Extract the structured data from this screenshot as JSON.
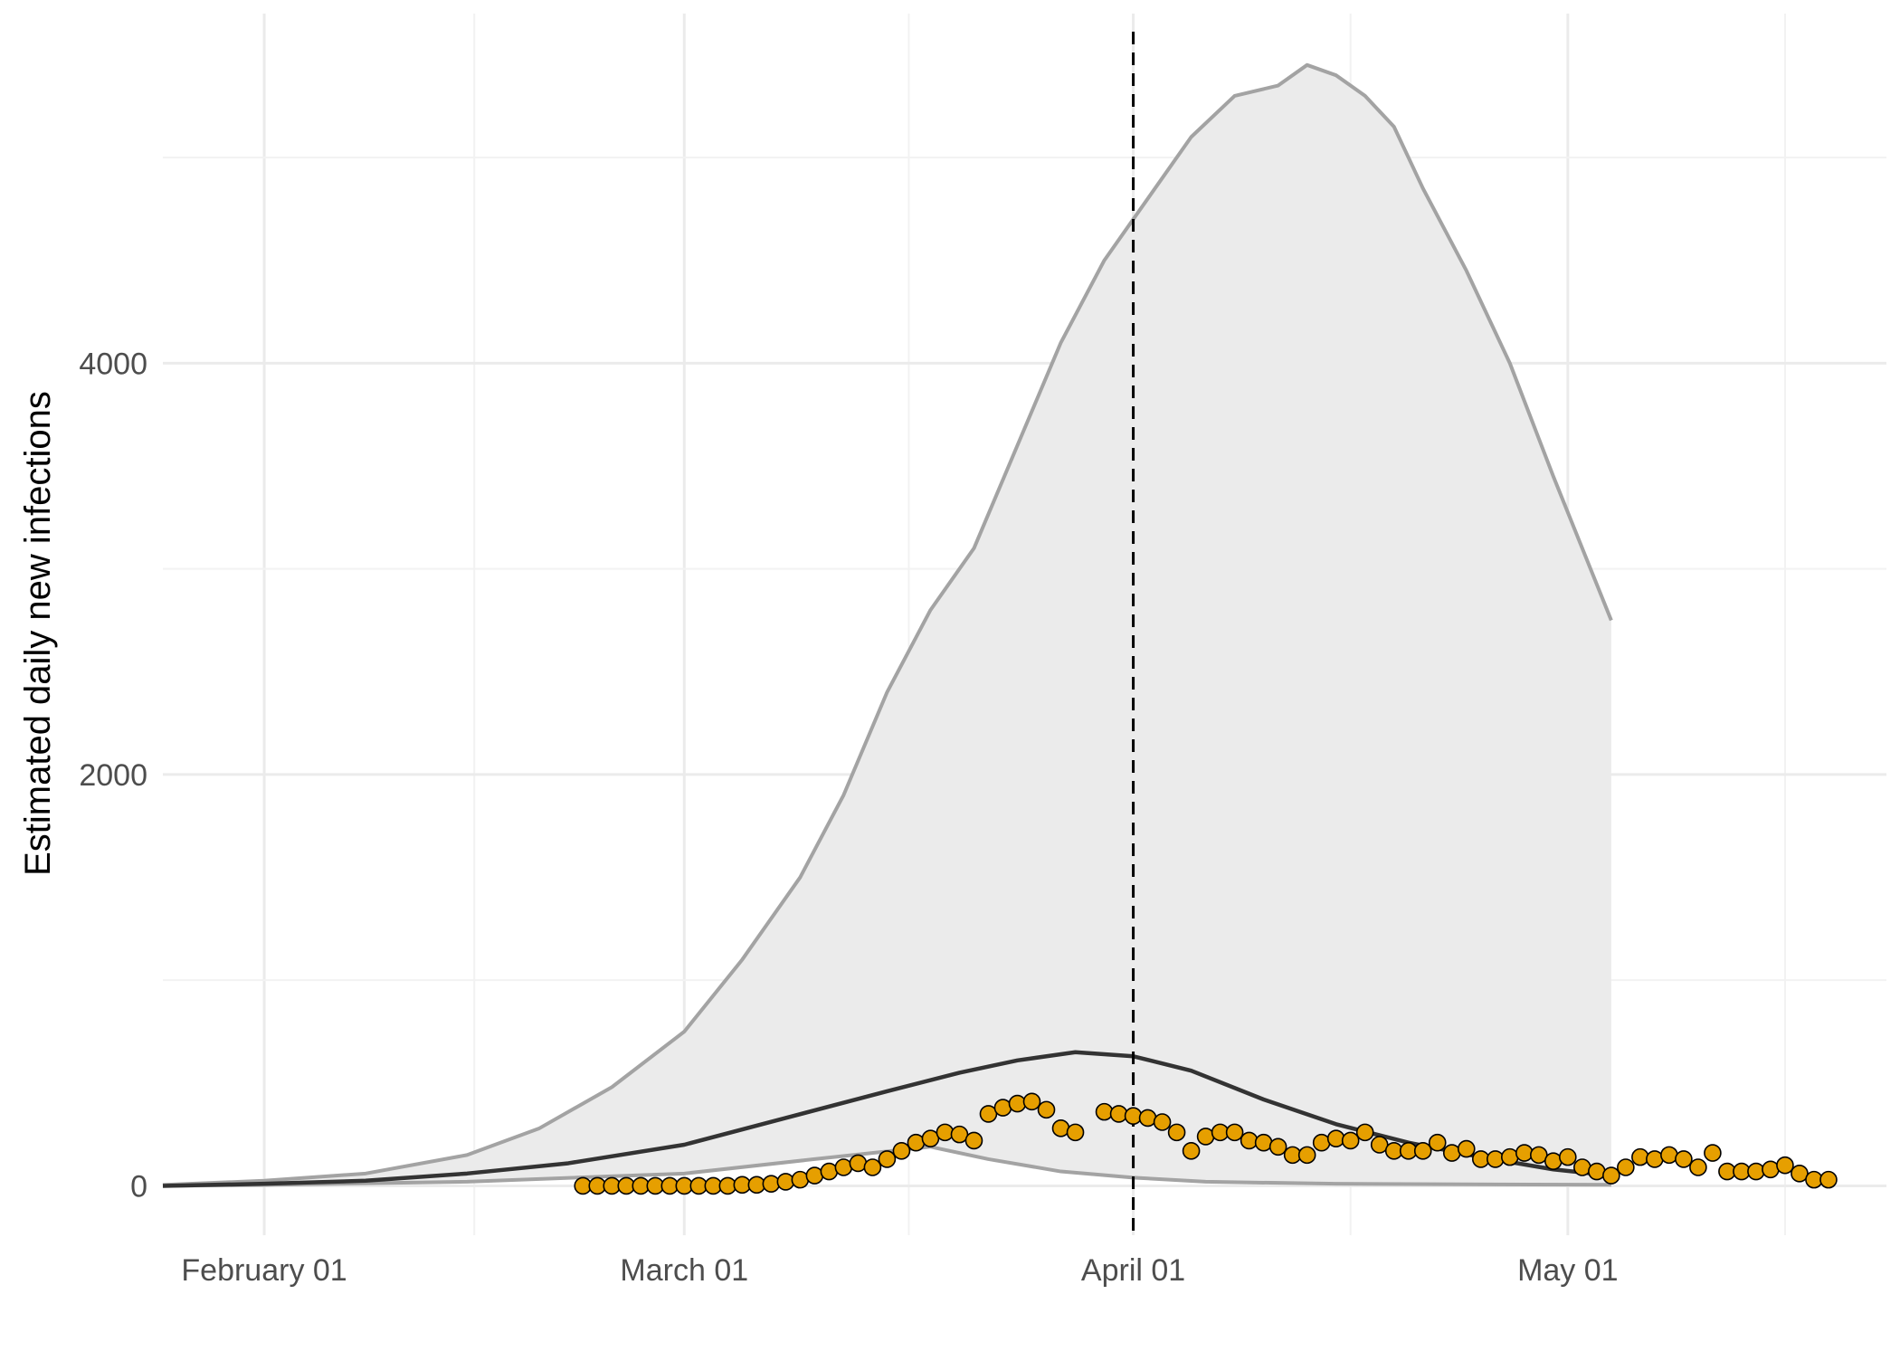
{
  "chart_data": {
    "type": "line",
    "title": "",
    "xlabel": "",
    "ylabel": "Estimated daily new infections",
    "x_ticks": [
      "February 01",
      "March 01",
      "April 01",
      "May 01"
    ],
    "y_ticks": [
      0,
      2000,
      4000
    ],
    "xlim": [
      "2020-01-25",
      "2020-05-23"
    ],
    "ylim": [
      -240,
      5700
    ],
    "grid": true,
    "legend": "none",
    "vline": {
      "date": "2020-04-01",
      "style": "dashed"
    },
    "series": [
      {
        "kind": "band",
        "fill": "#ebebeb",
        "edge_color": "#a3a3a3",
        "upper": [
          [
            "2020-01-25",
            5
          ],
          [
            "2020-02-01",
            25
          ],
          [
            "2020-02-08",
            60
          ],
          [
            "2020-02-15",
            150
          ],
          [
            "2020-02-20",
            280
          ],
          [
            "2020-02-25",
            480
          ],
          [
            "2020-03-01",
            750
          ],
          [
            "2020-03-05",
            1100
          ],
          [
            "2020-03-09",
            1500
          ],
          [
            "2020-03-12",
            1900
          ],
          [
            "2020-03-15",
            2400
          ],
          [
            "2020-03-18",
            2800
          ],
          [
            "2020-03-21",
            3100
          ],
          [
            "2020-03-24",
            3600
          ],
          [
            "2020-03-27",
            4100
          ],
          [
            "2020-03-30",
            4500
          ],
          [
            "2020-04-02",
            4800
          ],
          [
            "2020-04-05",
            5100
          ],
          [
            "2020-04-08",
            5300
          ],
          [
            "2020-04-11",
            5350
          ],
          [
            "2020-04-13",
            5450
          ],
          [
            "2020-04-15",
            5400
          ],
          [
            "2020-04-17",
            5300
          ],
          [
            "2020-04-19",
            5150
          ],
          [
            "2020-04-21",
            4850
          ],
          [
            "2020-04-24",
            4450
          ],
          [
            "2020-04-27",
            4000
          ],
          [
            "2020-04-30",
            3450
          ],
          [
            "2020-05-04",
            2750
          ]
        ],
        "lower": [
          [
            "2020-01-25",
            0
          ],
          [
            "2020-02-01",
            5
          ],
          [
            "2020-02-15",
            20
          ],
          [
            "2020-03-01",
            60
          ],
          [
            "2020-03-10",
            130
          ],
          [
            "2020-03-18",
            190
          ],
          [
            "2020-03-22",
            130
          ],
          [
            "2020-03-27",
            70
          ],
          [
            "2020-04-01",
            40
          ],
          [
            "2020-04-06",
            20
          ],
          [
            "2020-04-15",
            10
          ],
          [
            "2020-05-04",
            5
          ]
        ]
      },
      {
        "kind": "line",
        "color": "#333333",
        "points": [
          [
            "2020-01-25",
            0
          ],
          [
            "2020-02-01",
            10
          ],
          [
            "2020-02-08",
            25
          ],
          [
            "2020-02-15",
            60
          ],
          [
            "2020-02-22",
            110
          ],
          [
            "2020-03-01",
            200
          ],
          [
            "2020-03-08",
            330
          ],
          [
            "2020-03-15",
            460
          ],
          [
            "2020-03-20",
            550
          ],
          [
            "2020-03-24",
            610
          ],
          [
            "2020-03-28",
            650
          ],
          [
            "2020-04-01",
            630
          ],
          [
            "2020-04-05",
            560
          ],
          [
            "2020-04-10",
            420
          ],
          [
            "2020-04-15",
            300
          ],
          [
            "2020-04-20",
            210
          ],
          [
            "2020-04-25",
            140
          ],
          [
            "2020-04-30",
            80
          ],
          [
            "2020-05-04",
            50
          ]
        ]
      },
      {
        "kind": "points",
        "fill": "#e69f00",
        "stroke": "#000000",
        "points": [
          [
            "2020-02-23",
            0
          ],
          [
            "2020-02-24",
            0
          ],
          [
            "2020-02-25",
            0
          ],
          [
            "2020-02-26",
            0
          ],
          [
            "2020-02-27",
            0
          ],
          [
            "2020-02-28",
            0
          ],
          [
            "2020-02-29",
            0
          ],
          [
            "2020-03-01",
            0
          ],
          [
            "2020-03-02",
            0
          ],
          [
            "2020-03-03",
            0
          ],
          [
            "2020-03-04",
            0
          ],
          [
            "2020-03-05",
            5
          ],
          [
            "2020-03-06",
            5
          ],
          [
            "2020-03-07",
            10
          ],
          [
            "2020-03-08",
            20
          ],
          [
            "2020-03-09",
            30
          ],
          [
            "2020-03-10",
            50
          ],
          [
            "2020-03-11",
            70
          ],
          [
            "2020-03-12",
            90
          ],
          [
            "2020-03-13",
            110
          ],
          [
            "2020-03-14",
            90
          ],
          [
            "2020-03-15",
            130
          ],
          [
            "2020-03-16",
            170
          ],
          [
            "2020-03-17",
            210
          ],
          [
            "2020-03-18",
            230
          ],
          [
            "2020-03-19",
            260
          ],
          [
            "2020-03-20",
            250
          ],
          [
            "2020-03-21",
            220
          ],
          [
            "2020-03-22",
            350
          ],
          [
            "2020-03-23",
            380
          ],
          [
            "2020-03-24",
            400
          ],
          [
            "2020-03-25",
            410
          ],
          [
            "2020-03-26",
            370
          ],
          [
            "2020-03-27",
            280
          ],
          [
            "2020-03-28",
            260
          ],
          [
            "2020-03-30",
            360
          ],
          [
            "2020-03-31",
            350
          ],
          [
            "2020-04-01",
            340
          ],
          [
            "2020-04-02",
            330
          ],
          [
            "2020-04-03",
            310
          ],
          [
            "2020-04-04",
            260
          ],
          [
            "2020-04-05",
            170
          ],
          [
            "2020-04-06",
            240
          ],
          [
            "2020-04-07",
            260
          ],
          [
            "2020-04-08",
            260
          ],
          [
            "2020-04-09",
            220
          ],
          [
            "2020-04-10",
            210
          ],
          [
            "2020-04-11",
            190
          ],
          [
            "2020-04-12",
            150
          ],
          [
            "2020-04-13",
            150
          ],
          [
            "2020-04-14",
            210
          ],
          [
            "2020-04-15",
            230
          ],
          [
            "2020-04-16",
            220
          ],
          [
            "2020-04-17",
            260
          ],
          [
            "2020-04-18",
            200
          ],
          [
            "2020-04-19",
            170
          ],
          [
            "2020-04-20",
            170
          ],
          [
            "2020-04-21",
            170
          ],
          [
            "2020-04-22",
            210
          ],
          [
            "2020-04-23",
            160
          ],
          [
            "2020-04-24",
            180
          ],
          [
            "2020-04-25",
            130
          ],
          [
            "2020-04-26",
            130
          ],
          [
            "2020-04-27",
            140
          ],
          [
            "2020-04-28",
            160
          ],
          [
            "2020-04-29",
            150
          ],
          [
            "2020-04-30",
            120
          ],
          [
            "2020-05-01",
            140
          ],
          [
            "2020-05-02",
            90
          ],
          [
            "2020-05-03",
            70
          ],
          [
            "2020-05-04",
            50
          ],
          [
            "2020-05-05",
            90
          ],
          [
            "2020-05-06",
            140
          ],
          [
            "2020-05-07",
            130
          ],
          [
            "2020-05-08",
            150
          ],
          [
            "2020-05-09",
            130
          ],
          [
            "2020-05-10",
            90
          ],
          [
            "2020-05-11",
            160
          ],
          [
            "2020-05-12",
            70
          ],
          [
            "2020-05-13",
            70
          ],
          [
            "2020-05-14",
            70
          ],
          [
            "2020-05-15",
            80
          ],
          [
            "2020-05-16",
            100
          ],
          [
            "2020-05-17",
            60
          ],
          [
            "2020-05-18",
            30
          ],
          [
            "2020-05-19",
            30
          ]
        ]
      }
    ]
  }
}
